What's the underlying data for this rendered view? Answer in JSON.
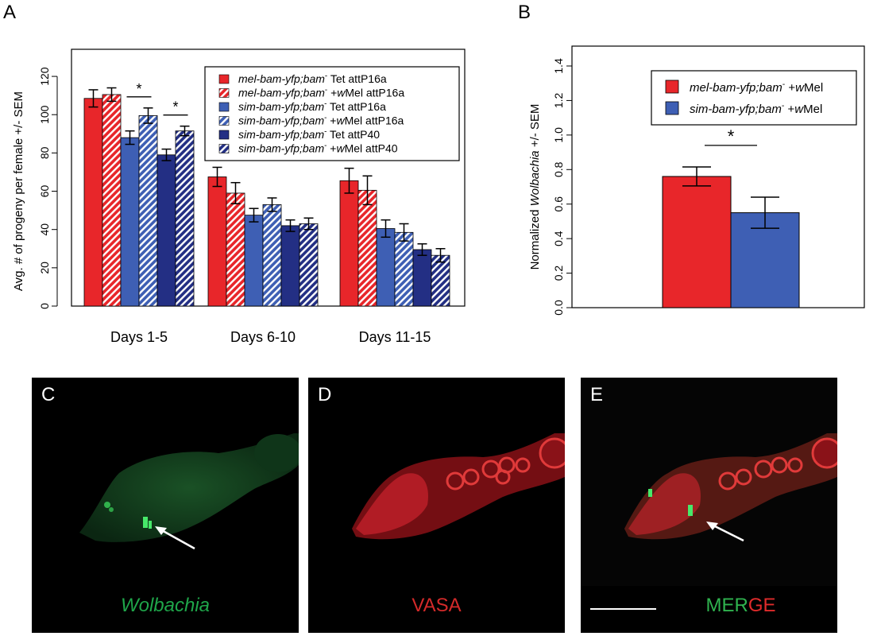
{
  "panels": {
    "A": {
      "letter": "A"
    },
    "B": {
      "letter": "B"
    },
    "C": {
      "letter": "C",
      "caption": "Wolbachia"
    },
    "D": {
      "letter": "D",
      "caption": "VASA"
    },
    "E": {
      "letter": "E",
      "caption_part1": "MER",
      "caption_part2": "GE"
    }
  },
  "colors": {
    "red": "#e8262a",
    "lightblue": "#3e5fb4",
    "darkblue": "#232f84",
    "hatch": "#ffffff"
  },
  "chart_data": [
    {
      "type": "bar",
      "panel": "A",
      "ylabel": "Avg. # of progeny per female +/- SEM",
      "xlabel": "",
      "ylim": [
        0,
        130
      ],
      "yticks": [
        0,
        20,
        40,
        60,
        80,
        100,
        120
      ],
      "categories": [
        "Days 1-5",
        "Days 6-10",
        "Days 11-15"
      ],
      "series": [
        {
          "name": "mel-bam-yfp;bam⁻ Tet attP16a",
          "name_italic": "mel-bam-yfp;bam",
          "name_sup": "-",
          "name_rest": " Tet attP16a",
          "color": "#e8262a",
          "hatched": false,
          "values": [
            108.5,
            67.5,
            65.5
          ],
          "errors": [
            4.5,
            5,
            6.5
          ]
        },
        {
          "name": "mel-bam-yfp;bam⁻ +wMel attP16a",
          "name_italic": "mel-bam-yfp;bam",
          "name_sup": "-",
          "name_rest": " +wMel attP16a",
          "color": "#e8262a",
          "hatched": true,
          "values": [
            110.5,
            59,
            60.5
          ],
          "errors": [
            3.5,
            5.5,
            7.5
          ]
        },
        {
          "name": "sim-bam-yfp;bam⁻ Tet attP16a",
          "name_italic": "sim-bam-yfp;bam",
          "name_sup": "-",
          "name_rest": " Tet attP16a",
          "color": "#3e5fb4",
          "hatched": false,
          "values": [
            88,
            47.5,
            40.5
          ],
          "errors": [
            3.5,
            3.5,
            4.5
          ]
        },
        {
          "name": "sim-bam-yfp;bam⁻ +wMel attP16a",
          "name_italic": "sim-bam-yfp;bam",
          "name_sup": "-",
          "name_rest": " +wMel attP16a",
          "color": "#3e5fb4",
          "hatched": true,
          "values": [
            99.5,
            53,
            38.5
          ],
          "errors": [
            4,
            3.5,
            4.5
          ]
        },
        {
          "name": "sim-bam-yfp;bam⁻ Tet attP40",
          "name_italic": "sim-bam-yfp;bam",
          "name_sup": "-",
          "name_rest": " Tet attP40",
          "color": "#232f84",
          "hatched": false,
          "values": [
            79,
            42,
            29.5
          ],
          "errors": [
            3,
            3,
            3
          ]
        },
        {
          "name": "sim-bam-yfp;bam⁻ +wMel attP40",
          "name_italic": "sim-bam-yfp;bam",
          "name_sup": "-",
          "name_rest": " +wMel attP40",
          "color": "#232f84",
          "hatched": true,
          "values": [
            91.5,
            43,
            26.5
          ],
          "errors": [
            2.5,
            3,
            3.5
          ]
        }
      ],
      "significance": [
        {
          "group": 0,
          "from_series": 2,
          "to_series": 3,
          "label": "*"
        },
        {
          "group": 0,
          "from_series": 4,
          "to_series": 5,
          "label": "*"
        }
      ],
      "legend_placement": "top-right",
      "grid": false
    },
    {
      "type": "bar",
      "panel": "B",
      "ylabel": "Normalized Wolbachia +/- SEM",
      "ylabel_pre": "Normalized ",
      "ylabel_italic": "Wolbachia",
      "ylabel_post": " +/- SEM",
      "ylim": [
        0,
        1.4
      ],
      "yticks": [
        "0.0",
        "0.2",
        "0.4",
        "0.6",
        "0.8",
        "1.0",
        "1.2",
        "1.4"
      ],
      "categories": [
        ""
      ],
      "series": [
        {
          "name": "mel-bam-yfp;bam⁻ +wMel",
          "name_italic": "mel-bam-yfp;bam",
          "name_sup": "-",
          "name_rest": " +wMel",
          "color": "#e8262a",
          "values": [
            0.76
          ],
          "errors": [
            0.055
          ]
        },
        {
          "name": "sim-bam-yfp;bam⁻ +wMel",
          "name_italic": "sim-bam-yfp;bam",
          "name_sup": "-",
          "name_rest": " +wMel",
          "color": "#3e5fb4",
          "values": [
            0.55
          ],
          "errors": [
            0.09
          ]
        }
      ],
      "significance": [
        {
          "from_series": 0,
          "to_series": 1,
          "label": "*"
        }
      ],
      "legend_placement": "top-right",
      "grid": false
    }
  ]
}
